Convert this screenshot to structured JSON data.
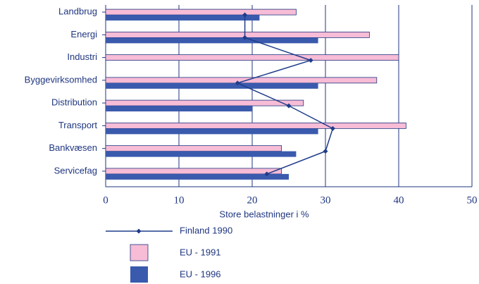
{
  "chart_data": {
    "type": "bar",
    "orientation": "horizontal",
    "categories": [
      "Landbrug",
      "Energi",
      "Industri",
      "Byggevirksomhed",
      "Distribution",
      "Transport",
      "Bankvæsen",
      "Servicefag"
    ],
    "series": [
      {
        "name": "Finland 1990",
        "color": "#1f3d8a",
        "type": "line",
        "values": [
          19,
          19,
          28,
          18,
          25,
          31,
          30,
          22
        ]
      },
      {
        "name": "EU - 1991",
        "color": "#f7bcd6",
        "values": [
          26,
          36,
          40,
          37,
          27,
          41,
          24,
          24
        ]
      },
      {
        "name": "EU - 1996",
        "color": "#3a5aad",
        "values": [
          21,
          29,
          null,
          29,
          20,
          29,
          26,
          25
        ]
      }
    ],
    "x_label": "Store belastninger i %",
    "xlim": [
      0,
      50
    ],
    "xticks": [
      0,
      10,
      20,
      30,
      40,
      50
    ],
    "grid": true
  }
}
